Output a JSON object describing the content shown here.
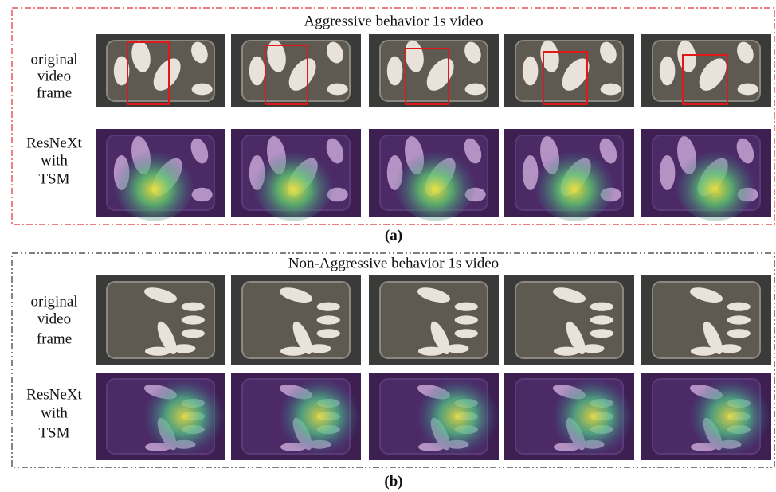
{
  "panels": [
    {
      "title": "Aggressive behavior 1s video",
      "rows": [
        {
          "label": [
            "original",
            "video",
            "frame"
          ]
        },
        {
          "label": [
            "ResNeXt",
            "with",
            "TSM"
          ]
        }
      ],
      "caption": "(a)"
    },
    {
      "title": "Non-Aggressive behavior 1s video",
      "rows": [
        {
          "label": [
            "original",
            "video",
            "frame"
          ]
        },
        {
          "label": [
            "ResNeXt",
            "with",
            "TSM"
          ]
        }
      ],
      "caption": "(b)"
    }
  ]
}
